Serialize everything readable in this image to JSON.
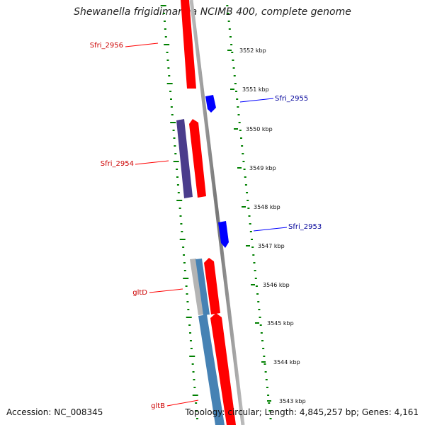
{
  "header": {
    "title": "Shewanella frigidimarina NCIMB 400, complete genome"
  },
  "footer": {
    "accession": "Accession: NC_008345",
    "topology": "Topology: circular; Length: 4,845,257 bp; Genes: 4,161"
  },
  "colors": {
    "forward": "#ff0000",
    "reverse": "#0000ff",
    "navy": "#4a3c8c",
    "steel": "#4682b4",
    "grey": "#b4b4b4",
    "backbone": "#888888",
    "tick": "#008000",
    "label_forward": "#cc0000",
    "label_reverse": "#000099"
  },
  "ticks": [
    {
      "label": "3552 kbp"
    },
    {
      "label": "3551 kbp"
    },
    {
      "label": "3550 kbp"
    },
    {
      "label": "3549 kbp"
    },
    {
      "label": "3548 kbp"
    },
    {
      "label": "3547 kbp"
    },
    {
      "label": "3546 kbp"
    },
    {
      "label": "3545 kbp"
    },
    {
      "label": "3544 kbp"
    },
    {
      "label": "3543 kbp"
    }
  ],
  "gene_labels": [
    {
      "name": "Sfri_2956",
      "strand": "forward"
    },
    {
      "name": "Sfri_2955",
      "strand": "reverse"
    },
    {
      "name": "Sfri_2954",
      "strand": "forward"
    },
    {
      "name": "Sfri_2953",
      "strand": "reverse"
    },
    {
      "name": "gltD",
      "strand": "forward"
    },
    {
      "name": "gltB",
      "strand": "forward"
    }
  ]
}
